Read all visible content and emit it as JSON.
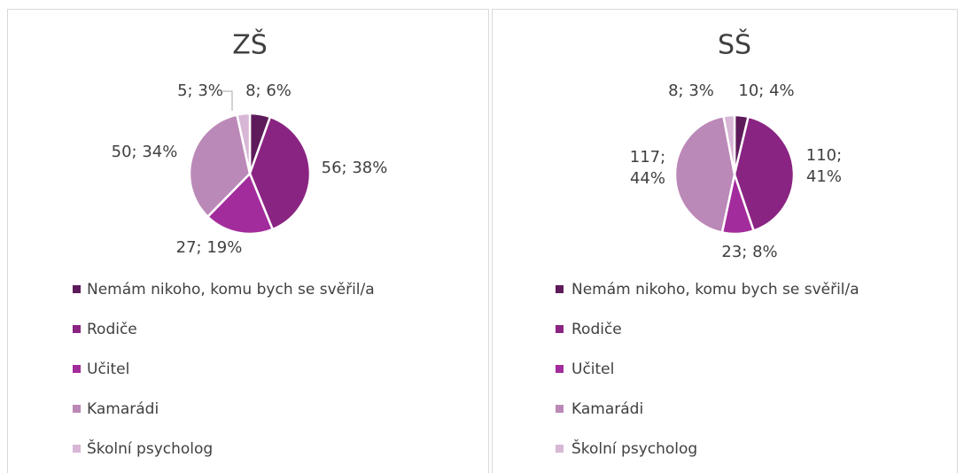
{
  "chart_data": [
    {
      "type": "pie",
      "title": "ZŠ",
      "categories": [
        "Nemám nikoho, komu bych se svěřil/a",
        "Rodiče",
        "Učitel",
        "Kamarádi",
        "Školní psycholog"
      ],
      "values": [
        8,
        56,
        27,
        50,
        5
      ],
      "value_labels": [
        "8; 6%",
        "56; 38%",
        "27; 19%",
        "50; 34%",
        "5; 3%"
      ],
      "colors": [
        "#5e1b5b",
        "#8a2482",
        "#a32c9c",
        "#bb89b7",
        "#d8b6d5"
      ],
      "legend": "bottom"
    },
    {
      "type": "pie",
      "title": "SŠ",
      "categories": [
        "Nemám nikoho, komu bych se svěřil/a",
        "Rodiče",
        "Učitel",
        "Kamarádi",
        "Školní psycholog"
      ],
      "values": [
        10,
        110,
        23,
        117,
        8
      ],
      "value_labels": [
        "10; 4%",
        "110; 41%",
        "23; 8%",
        "117; 44%",
        "8; 3%"
      ],
      "colors": [
        "#5e1b5b",
        "#8a2482",
        "#a32c9c",
        "#bb89b7",
        "#d8b6d5"
      ],
      "legend": "bottom"
    }
  ]
}
